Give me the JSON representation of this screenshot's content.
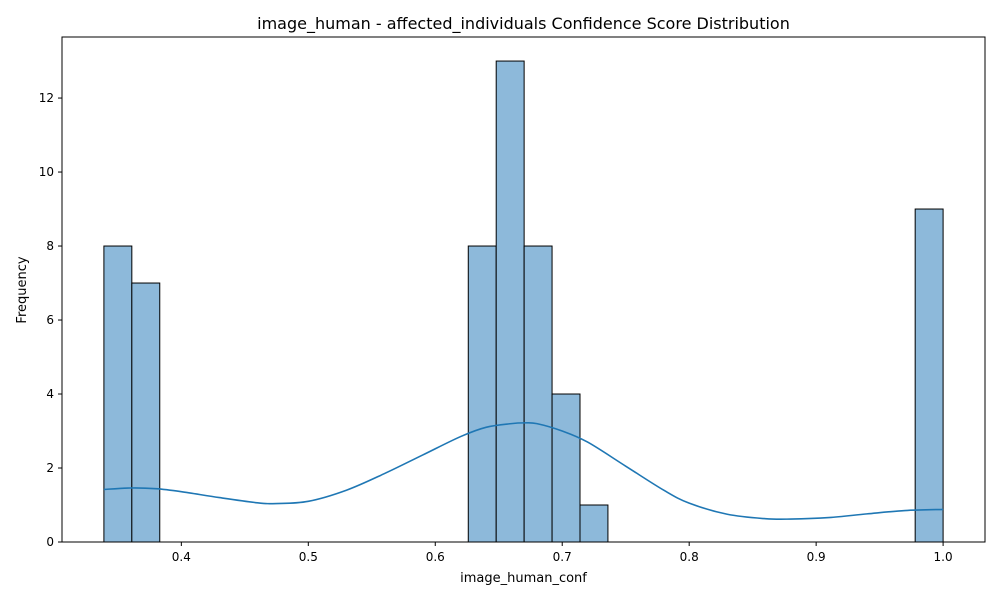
{
  "chart_data": {
    "type": "bar",
    "title": "image_human - affected_individuals Confidence Score Distribution",
    "xlabel": "image_human_conf",
    "ylabel": "Frequency",
    "xlim": [
      0.306,
      1.033
    ],
    "ylim": [
      0,
      13.65
    ],
    "xticks": [
      0.4,
      0.5,
      0.6,
      0.7,
      0.8,
      0.9,
      1.0
    ],
    "xtick_labels": [
      "0.4",
      "0.5",
      "0.6",
      "0.7",
      "0.8",
      "0.9",
      "1.0"
    ],
    "yticks": [
      0,
      2,
      4,
      6,
      8,
      10,
      12
    ],
    "ytick_labels": [
      "0",
      "2",
      "4",
      "6",
      "8",
      "10",
      "12"
    ],
    "bar_color": "#8db9da",
    "bar_edge_color": "#000000",
    "kde_color": "#1f77b4",
    "grid": false,
    "bins": [
      {
        "x0": 0.339,
        "x1": 0.361,
        "count": 8
      },
      {
        "x0": 0.361,
        "x1": 0.383,
        "count": 7
      },
      {
        "x0": 0.626,
        "x1": 0.648,
        "count": 8
      },
      {
        "x0": 0.648,
        "x1": 0.67,
        "count": 13
      },
      {
        "x0": 0.67,
        "x1": 0.692,
        "count": 8
      },
      {
        "x0": 0.692,
        "x1": 0.714,
        "count": 4
      },
      {
        "x0": 0.714,
        "x1": 0.736,
        "count": 1
      },
      {
        "x0": 0.978,
        "x1": 1.0,
        "count": 9
      }
    ],
    "kde": {
      "x": [
        0.339,
        0.36,
        0.38,
        0.4,
        0.43,
        0.46,
        0.475,
        0.5,
        0.53,
        0.56,
        0.59,
        0.62,
        0.64,
        0.66,
        0.67,
        0.68,
        0.7,
        0.72,
        0.75,
        0.78,
        0.8,
        0.83,
        0.86,
        0.88,
        0.91,
        0.94,
        0.97,
        1.0
      ],
      "y": [
        1.42,
        1.46,
        1.44,
        1.36,
        1.2,
        1.06,
        1.04,
        1.1,
        1.4,
        1.85,
        2.35,
        2.85,
        3.1,
        3.2,
        3.22,
        3.2,
        3.0,
        2.7,
        2.05,
        1.4,
        1.05,
        0.75,
        0.63,
        0.62,
        0.66,
        0.76,
        0.85,
        0.88
      ]
    }
  }
}
